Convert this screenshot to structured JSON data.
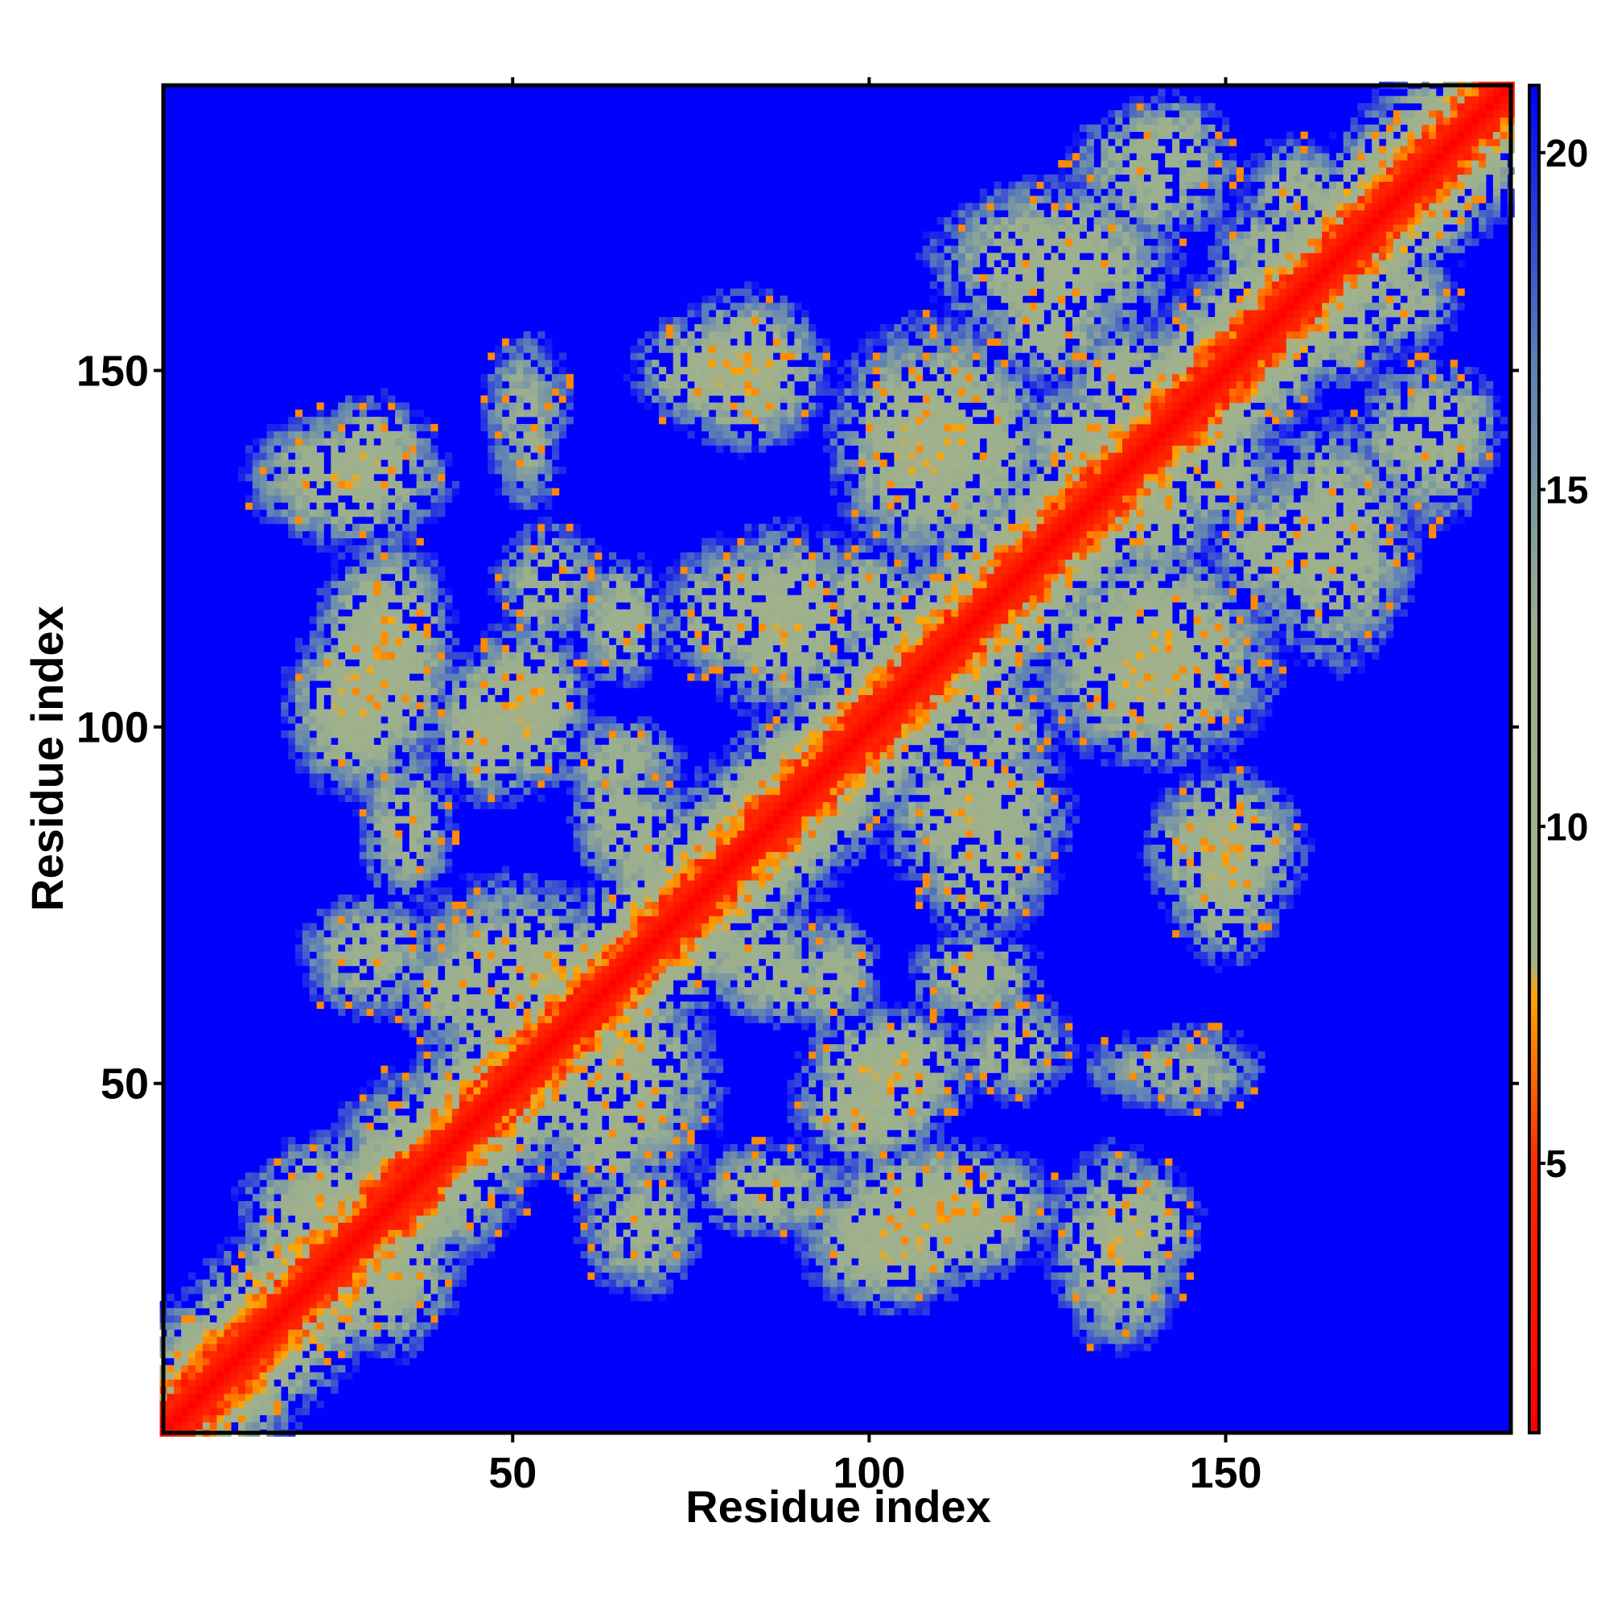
{
  "chart_data": {
    "type": "heatmap",
    "title": "",
    "xlabel": "Residue index",
    "ylabel": "Residue index",
    "n_residues": 190,
    "xlim": [
      1,
      190
    ],
    "ylim": [
      1,
      190
    ],
    "x_ticks": [
      50,
      100,
      150
    ],
    "y_ticks": [
      50,
      100,
      150
    ],
    "colorbar": {
      "range": [
        1,
        21
      ],
      "ticks": [
        5,
        10,
        15,
        20
      ],
      "stops": [
        {
          "value": 1,
          "color": "#ff0000"
        },
        {
          "value": 5,
          "color": "#ff2a00"
        },
        {
          "value": 7.5,
          "color": "#ffa500"
        },
        {
          "value": 8,
          "color": "#a3b28a"
        },
        {
          "value": 13,
          "color": "#9aaf8f"
        },
        {
          "value": 17,
          "color": "#5b7fb8"
        },
        {
          "value": 21,
          "color": "#0000ff"
        }
      ],
      "background_color": "#0000ff"
    },
    "clusters": [
      {
        "x": 25,
        "y": 32,
        "sx": 11,
        "sy": 9,
        "min": 9.2
      },
      {
        "x": 38,
        "y": 38,
        "sx": 12,
        "sy": 12,
        "min": 9.8
      },
      {
        "x": 50,
        "y": 65,
        "sx": 14,
        "sy": 12,
        "min": 10.0
      },
      {
        "x": 30,
        "y": 68,
        "sx": 9,
        "sy": 8,
        "min": 11.2
      },
      {
        "x": 28,
        "y": 103,
        "sx": 8,
        "sy": 10,
        "min": 8.6
      },
      {
        "x": 47,
        "y": 100,
        "sx": 7,
        "sy": 9,
        "min": 9.0
      },
      {
        "x": 27,
        "y": 135,
        "sx": 12,
        "sy": 8,
        "min": 9.5
      },
      {
        "x": 65,
        "y": 115,
        "sx": 6,
        "sy": 8,
        "min": 10.6
      },
      {
        "x": 82,
        "y": 116,
        "sx": 10,
        "sy": 9,
        "min": 10.2
      },
      {
        "x": 79,
        "y": 150,
        "sx": 10,
        "sy": 7,
        "min": 9.2
      },
      {
        "x": 108,
        "y": 140,
        "sx": 11,
        "sy": 14,
        "min": 9.0
      },
      {
        "x": 126,
        "y": 165,
        "sx": 15,
        "sy": 10,
        "min": 10.0
      },
      {
        "x": 142,
        "y": 182,
        "sx": 8,
        "sy": 6,
        "min": 11.0
      },
      {
        "x": 140,
        "y": 112,
        "sx": 14,
        "sy": 11,
        "min": 9.4
      },
      {
        "x": 158,
        "y": 125,
        "sx": 9,
        "sy": 9,
        "min": 10.8
      },
      {
        "x": 178,
        "y": 140,
        "sx": 9,
        "sy": 11,
        "min": 11.2
      },
      {
        "x": 165,
        "y": 157,
        "sx": 8,
        "sy": 8,
        "min": 10.5
      },
      {
        "x": 170,
        "y": 170,
        "sx": 7,
        "sy": 7,
        "min": 8.4
      },
      {
        "x": 115,
        "y": 88,
        "sx": 11,
        "sy": 11,
        "min": 9.3
      },
      {
        "x": 150,
        "y": 83,
        "sx": 9,
        "sy": 9,
        "min": 8.8
      },
      {
        "x": 103,
        "y": 52,
        "sx": 10,
        "sy": 7,
        "min": 8.8
      },
      {
        "x": 110,
        "y": 32,
        "sx": 14,
        "sy": 8,
        "min": 8.8
      },
      {
        "x": 137,
        "y": 30,
        "sx": 8,
        "sy": 8,
        "min": 9.6
      },
      {
        "x": 140,
        "y": 52,
        "sx": 10,
        "sy": 5,
        "min": 12.8
      },
      {
        "x": 86,
        "y": 35,
        "sx": 10,
        "sy": 6,
        "min": 11.0
      },
      {
        "x": 63,
        "y": 43,
        "sx": 7,
        "sy": 9,
        "min": 10.4
      },
      {
        "x": 66,
        "y": 54,
        "sx": 6,
        "sy": 6,
        "min": 8.4
      },
      {
        "x": 84,
        "y": 68,
        "sx": 9,
        "sy": 7,
        "min": 11.0
      },
      {
        "x": 95,
        "y": 65,
        "sx": 6,
        "sy": 8,
        "min": 11.4
      },
      {
        "x": 65,
        "y": 88,
        "sx": 6,
        "sy": 10,
        "min": 11.0
      },
      {
        "x": 100,
        "y": 118,
        "sx": 8,
        "sy": 8,
        "min": 11.5
      },
      {
        "x": 115,
        "y": 105,
        "sx": 8,
        "sy": 8,
        "min": 11.0
      },
      {
        "x": 52,
        "y": 145,
        "sx": 6,
        "sy": 10,
        "min": 12.5
      },
      {
        "x": 55,
        "y": 120,
        "sx": 7,
        "sy": 8,
        "min": 11.2
      },
      {
        "x": 122,
        "y": 125,
        "sx": 9,
        "sy": 8,
        "min": 9.5
      },
      {
        "x": 136,
        "y": 148,
        "sx": 8,
        "sy": 8,
        "min": 10.8
      },
      {
        "x": 140,
        "y": 130,
        "sx": 8,
        "sy": 8,
        "min": 10.5
      },
      {
        "x": 160,
        "y": 175,
        "sx": 7,
        "sy": 7,
        "min": 11.5
      }
    ]
  }
}
